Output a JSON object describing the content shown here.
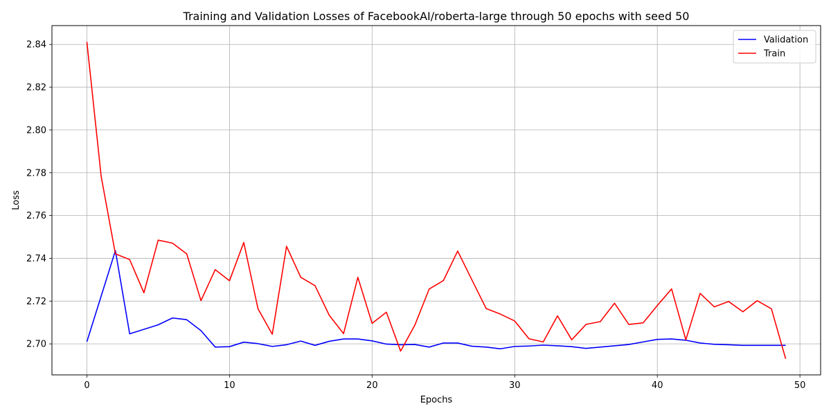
{
  "chart_data": {
    "type": "line",
    "title": "Training and Validation Losses of FacebookAI/roberta-large through 50 epochs with seed 50",
    "xlabel": "Epochs",
    "ylabel": "Loss",
    "xlim": [
      -2.45,
      51.45
    ],
    "ylim": [
      2.6855,
      2.8488
    ],
    "xticks": [
      0,
      10,
      20,
      30,
      40,
      50
    ],
    "yticks": [
      2.7,
      2.72,
      2.74,
      2.76,
      2.78,
      2.8,
      2.82,
      2.84
    ],
    "xtick_labels": [
      "0",
      "10",
      "20",
      "30",
      "40",
      "50"
    ],
    "ytick_labels": [
      "2.70",
      "2.72",
      "2.74",
      "2.76",
      "2.78",
      "2.80",
      "2.82",
      "2.84"
    ],
    "grid": true,
    "legend_position": "top-right",
    "x": [
      0,
      1,
      2,
      3,
      4,
      5,
      6,
      7,
      8,
      9,
      10,
      11,
      12,
      13,
      14,
      15,
      16,
      17,
      18,
      19,
      20,
      21,
      22,
      23,
      24,
      25,
      26,
      27,
      28,
      29,
      30,
      31,
      32,
      33,
      34,
      35,
      36,
      37,
      38,
      39,
      40,
      41,
      42,
      43,
      44,
      45,
      46,
      47,
      48,
      49
    ],
    "series": [
      {
        "name": "Validation",
        "color": "#0000ff",
        "values": [
          2.701,
          2.7223,
          2.7436,
          2.7047,
          2.7068,
          2.7089,
          2.7121,
          2.7113,
          2.7062,
          2.6985,
          2.6987,
          2.7008,
          2.7001,
          2.6988,
          2.6996,
          2.7013,
          2.6993,
          2.7012,
          2.7023,
          2.7023,
          2.7014,
          2.6999,
          2.6996,
          2.6997,
          2.6985,
          2.7004,
          2.7004,
          2.6989,
          2.6985,
          2.6977,
          2.6988,
          2.699,
          2.6994,
          2.6991,
          2.6987,
          2.6979,
          2.6985,
          2.6991,
          2.6997,
          2.7009,
          2.7021,
          2.7023,
          2.7017,
          2.7004,
          2.6998,
          2.6996,
          2.6993,
          2.6993,
          2.6993,
          2.6993
        ]
      },
      {
        "name": "Train",
        "color": "#ff0000",
        "values": [
          2.8412,
          2.7784,
          2.7421,
          2.7394,
          2.7239,
          2.7485,
          2.7471,
          2.7421,
          2.7202,
          2.7347,
          2.7295,
          2.7474,
          2.7164,
          2.7045,
          2.7456,
          2.7311,
          2.7272,
          2.7133,
          2.7048,
          2.7311,
          2.7096,
          2.7148,
          2.6966,
          2.7088,
          2.7256,
          2.7296,
          2.7434,
          2.7299,
          2.7165,
          2.7139,
          2.7107,
          2.7024,
          2.7009,
          2.7131,
          2.7019,
          2.7091,
          2.7104,
          2.719,
          2.7091,
          2.7098,
          2.7179,
          2.7257,
          2.7019,
          2.7236,
          2.7173,
          2.7198,
          2.715,
          2.7202,
          2.7164,
          2.693
        ]
      }
    ]
  }
}
